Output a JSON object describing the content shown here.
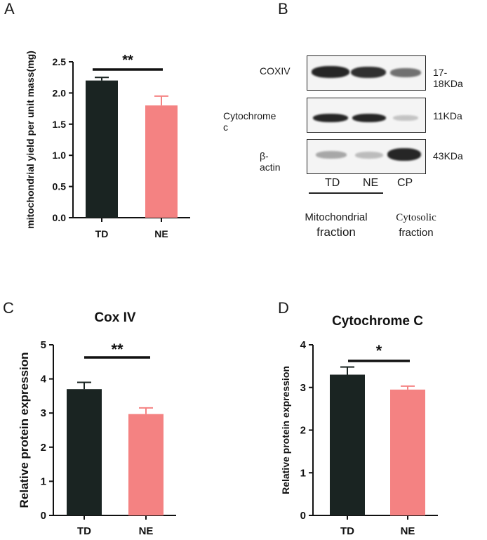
{
  "panels": {
    "a": "A",
    "b": "B",
    "c": "C",
    "d": "D"
  },
  "colors": {
    "td": "#1a2422",
    "ne": "#f48282",
    "axis": "#111111",
    "band": "#1b1b1b"
  },
  "chart_data": [
    {
      "id": "chartA",
      "type": "bar",
      "title": "",
      "xlabel": "",
      "ylabel": "mitochondrial yield per unit mass(mg)",
      "categories": [
        "TD",
        "NE"
      ],
      "values": [
        2.2,
        1.8
      ],
      "errors": [
        0.05,
        0.15
      ],
      "ylim": [
        0,
        2.5
      ],
      "yticks": [
        "0.0",
        "0.5",
        "1.0",
        "1.5",
        "2.0",
        "2.5"
      ],
      "significance": "**",
      "grid": false
    },
    {
      "id": "chartC",
      "type": "bar",
      "title": "Cox IV",
      "xlabel": "",
      "ylabel": "Relative protein expression",
      "categories": [
        "TD",
        "NE"
      ],
      "values": [
        3.7,
        2.97
      ],
      "errors": [
        0.2,
        0.18
      ],
      "ylim": [
        0,
        5
      ],
      "yticks": [
        "0",
        "1",
        "2",
        "3",
        "4",
        "5"
      ],
      "significance": "**",
      "grid": false
    },
    {
      "id": "chartD",
      "type": "bar",
      "title": "Cytochrome C",
      "xlabel": "",
      "ylabel": "Relative protein expression",
      "categories": [
        "TD",
        "NE"
      ],
      "values": [
        3.3,
        2.95
      ],
      "errors": [
        0.18,
        0.08
      ],
      "ylim": [
        0,
        4
      ],
      "yticks": [
        "0",
        "1",
        "2",
        "3",
        "4"
      ],
      "significance": "*",
      "grid": false
    }
  ],
  "blot": {
    "rows": [
      {
        "label": "COXIV",
        "size": "17-18KDa",
        "intensity": [
          0.95,
          0.9,
          0.6
        ]
      },
      {
        "label": "Cytochrome c",
        "size": "11KDa",
        "intensity": [
          0.95,
          0.95,
          0.22
        ]
      },
      {
        "label": "β-actin",
        "size": "43KDa",
        "intensity": [
          0.35,
          0.25,
          0.95
        ]
      }
    ],
    "lanes": [
      "TD",
      "NE",
      "CP"
    ],
    "fractions": {
      "mito_line1": "Mitochondrial",
      "mito_line2": "fraction",
      "cyto_line1": "Cytosolic",
      "cyto_line2": "fraction"
    }
  }
}
